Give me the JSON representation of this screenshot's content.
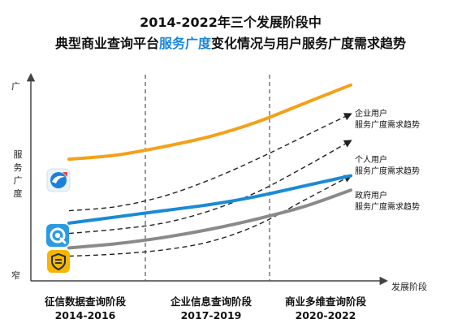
{
  "title": {
    "line1": "2014-2022年三个发展阶段中",
    "line2_prefix": "典型商业查询平台",
    "line2_highlight": "服务广度",
    "line2_suffix": "变化情况与用户服务广度需求趋势"
  },
  "colors": {
    "highlight": "#1a86d9",
    "platform_1": "#f5a01a",
    "platform_2": "#1a8ad6",
    "platform_3": "#8a8a8a",
    "demand": "#222222",
    "divider": "#555555"
  },
  "chart_data": {
    "type": "line",
    "title": "2014-2022年三个发展阶段中 典型商业查询平台服务广度变化情况与用户服务广度需求趋势",
    "xlabel": "发展阶段",
    "ylabel": "服务广度",
    "y_top_label": "广",
    "y_bottom_label": "窄",
    "grid": false,
    "stages": [
      {
        "name": "征信数据查询阶段",
        "years": "2014-2016"
      },
      {
        "name": "企业信息查询阶段",
        "years": "2017-2019"
      },
      {
        "name": "商业多维查询阶段",
        "years": "2020-2022"
      }
    ],
    "x": [
      0,
      0.5,
      1,
      1.5,
      2,
      2.5,
      3
    ],
    "series": [
      {
        "values": [
          5.9,
          6.1,
          6.5,
          7.0,
          7.7,
          8.6,
          9.5
        ],
        "style": "solid",
        "color": "#f5a01a"
      },
      {
        "values": [
          2.8,
          3.1,
          3.4,
          3.7,
          4.1,
          4.6,
          5.1
        ],
        "style": "solid",
        "color": "#1a8ad6"
      },
      {
        "values": [
          1.6,
          1.8,
          2.1,
          2.5,
          3.0,
          3.6,
          4.4
        ],
        "style": "solid",
        "color": "#8a8a8a"
      },
      {
        "name": "企业用户 服务广度需求趋势",
        "values": [
          3.4,
          3.6,
          4.1,
          4.9,
          5.9,
          7.0,
          8.1
        ],
        "style": "dashed",
        "color": "#222222"
      },
      {
        "name": "个人用户 服务广度需求趋势",
        "values": [
          2.3,
          2.5,
          2.8,
          3.4,
          4.3,
          5.5,
          6.8
        ],
        "style": "dashed",
        "color": "#222222"
      },
      {
        "name": "政府用户 服务广度需求趋势",
        "values": [
          1.2,
          1.3,
          1.5,
          1.9,
          2.7,
          3.9,
          5.1
        ],
        "style": "dashed",
        "color": "#222222"
      }
    ],
    "annotations": [
      {
        "line1": "企业用户",
        "line2": "服务广度需求趋势"
      },
      {
        "line1": "个人用户",
        "line2": "服务广度需求趋势"
      },
      {
        "line1": "政府用户",
        "line2": "服务广度需求趋势"
      }
    ],
    "platform_icons": [
      {
        "icon": "orange-blue-platform-logo-icon",
        "series_index": 0
      },
      {
        "icon": "blue-q-platform-logo-icon",
        "series_index": 1
      },
      {
        "icon": "yellow-shield-platform-logo-icon",
        "series_index": 2
      }
    ],
    "xlim": [
      0,
      3
    ],
    "ylim": [
      0,
      10
    ]
  }
}
